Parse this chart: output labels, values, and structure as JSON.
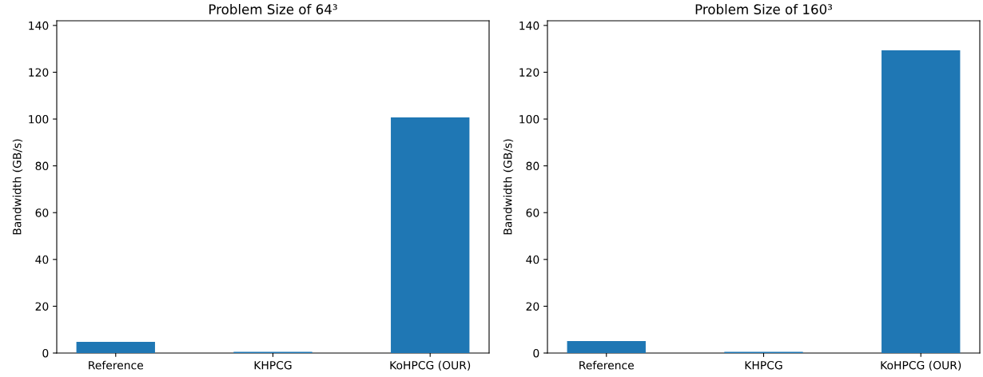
{
  "chart_data": [
    {
      "type": "bar",
      "title": "Problem Size of 64³",
      "ylabel": "Bandwidth (GB/s)",
      "categories": [
        "Reference",
        "KHPCG",
        "KoHPCG (OUR)"
      ],
      "values": [
        4.8,
        0.5,
        100.7
      ],
      "color": "#1f77b4",
      "ylim": [
        0,
        142
      ],
      "yticks": [
        0,
        20,
        40,
        60,
        80,
        100,
        120,
        140
      ],
      "grid": false
    },
    {
      "type": "bar",
      "title": "Problem Size of 160³",
      "ylabel": "Bandwidth (GB/s)",
      "categories": [
        "Reference",
        "KHPCG",
        "KoHPCG (OUR)"
      ],
      "values": [
        5.1,
        0.5,
        129.4
      ],
      "color": "#1f77b4",
      "ylim": [
        0,
        142
      ],
      "yticks": [
        0,
        20,
        40,
        60,
        80,
        100,
        120,
        140
      ],
      "grid": false
    }
  ]
}
